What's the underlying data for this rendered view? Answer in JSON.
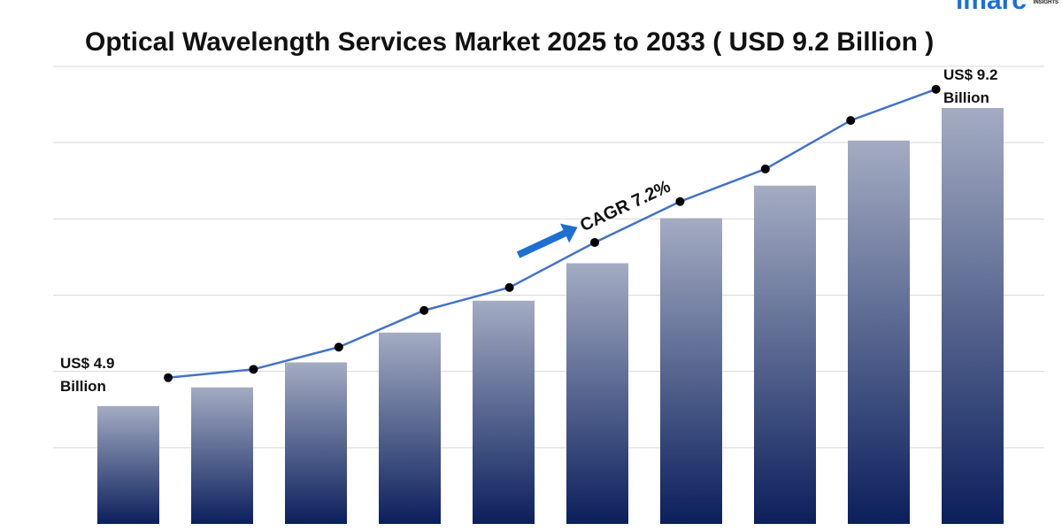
{
  "chart_data": {
    "type": "bar",
    "title": "Optical Wavelength Services Market 2025 to 2033 ( USD 9.2 Billion )",
    "brand": "imarc",
    "brand_sub": "INSIGHTS",
    "categories": [
      null,
      null,
      null,
      null,
      null,
      null,
      null,
      null,
      null,
      null
    ],
    "values": [
      4.9,
      5.17,
      5.53,
      5.96,
      6.42,
      6.96,
      7.61,
      8.08,
      8.73,
      9.2
    ],
    "value_labels": [
      "US$ 4.9 Billion",
      null,
      null,
      null,
      null,
      null,
      null,
      null,
      null,
      "US$ 9.2 Billion"
    ],
    "color": "#0b1f5c",
    "color_top": "#a4acc2",
    "series": [
      {
        "type": "line",
        "color": "#4472c4",
        "marker_color": "#000000",
        "values": [
          5.31,
          5.43,
          5.75,
          6.28,
          6.61,
          7.26,
          7.85,
          8.32,
          9.02,
          9.47
        ]
      }
    ],
    "annotation": "CAGR 7.2%",
    "ylim": [
      3.2,
      9.8
    ],
    "yticks": [
      4.3,
      5.4,
      6.5,
      7.6,
      8.7,
      9.8
    ],
    "grid": true
  }
}
